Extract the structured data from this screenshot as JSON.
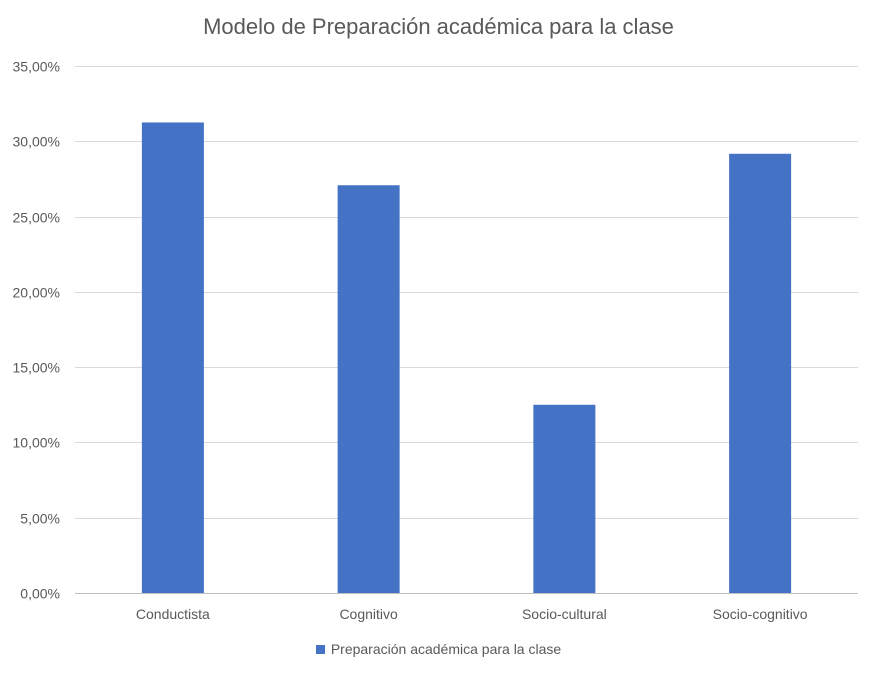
{
  "chart_data": {
    "type": "bar",
    "title": "Modelo de Preparación académica para la clase",
    "categories": [
      "Conductista",
      "Cognitivo",
      "Socio-cultural",
      "Socio-cognitivo"
    ],
    "series": [
      {
        "name": "Preparación académica para la clase",
        "values": [
          31.25,
          27.08,
          12.5,
          29.17
        ],
        "color": "#4472C4"
      }
    ],
    "ylim": [
      0,
      35
    ],
    "yticks": [
      "0,00%",
      "5,00%",
      "10,00%",
      "15,00%",
      "20,00%",
      "25,00%",
      "30,00%",
      "35,00%"
    ],
    "grid": true,
    "legend_position": "bottom"
  }
}
